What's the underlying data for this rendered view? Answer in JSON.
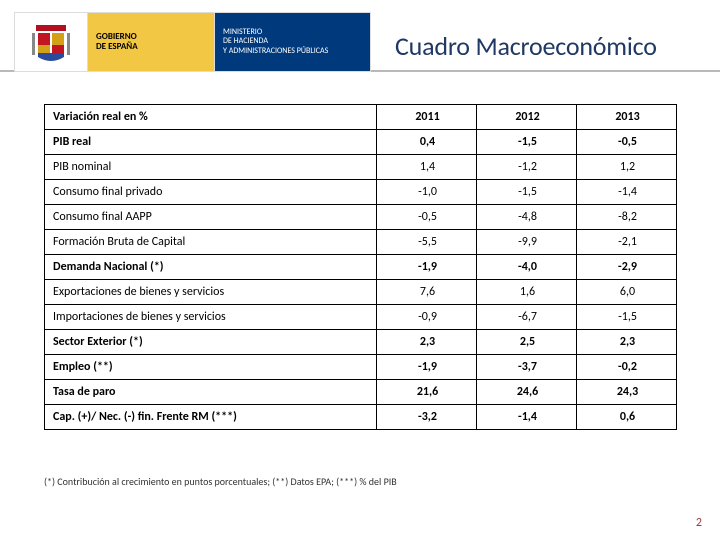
{
  "header": {
    "gov_line1": "GOBIERNO",
    "gov_line2": "DE ESPAÑA",
    "ministry_line1": "MINISTERIO",
    "ministry_line2": "DE HACIENDA",
    "ministry_line3": "Y ADMINISTRACIONES PÚBLICAS",
    "title": "Cuadro Macroeconómico"
  },
  "table": {
    "columns_label": "Variación real en %",
    "years": [
      "2011",
      "2012",
      "2013"
    ],
    "rows": [
      {
        "label": "PIB real",
        "values": [
          "0,4",
          "-1,5",
          "-0,5"
        ],
        "bold": true
      },
      {
        "label": "PIB nominal",
        "values": [
          "1,4",
          "-1,2",
          "1,2"
        ],
        "bold": false
      },
      {
        "label": "Consumo final privado",
        "values": [
          "-1,0",
          "-1,5",
          "-1,4"
        ],
        "bold": false
      },
      {
        "label": "Consumo final AAPP",
        "values": [
          "-0,5",
          "-4,8",
          "-8,2"
        ],
        "bold": false
      },
      {
        "label": "Formación Bruta de Capital",
        "values": [
          "-5,5",
          "-9,9",
          "-2,1"
        ],
        "bold": false
      },
      {
        "label": "Demanda Nacional (*)",
        "values": [
          "-1,9",
          "-4,0",
          "-2,9"
        ],
        "bold": true
      },
      {
        "label": "Exportaciones de bienes y servicios",
        "values": [
          "7,6",
          "1,6",
          "6,0"
        ],
        "bold": false
      },
      {
        "label": "Importaciones de bienes y servicios",
        "values": [
          "-0,9",
          "-6,7",
          "-1,5"
        ],
        "bold": false
      },
      {
        "label": "Sector Exterior (*)",
        "values": [
          "2,3",
          "2,5",
          "2,3"
        ],
        "bold": true
      },
      {
        "label": "Empleo (**)",
        "values": [
          "-1,9",
          "-3,7",
          "-0,2"
        ],
        "bold": true
      },
      {
        "label": "Tasa de paro",
        "values": [
          "21,6",
          "24,6",
          "24,3"
        ],
        "bold": true
      },
      {
        "label": "Cap. (+)/ Nec. (-) fin. Frente RM (***)",
        "values": [
          "-3,2",
          "-1,4",
          "0,6"
        ],
        "bold": true
      }
    ]
  },
  "footnote": "(*) Contribución al crecimiento en puntos porcentuales; (**) Datos EPA; (***) % del PIB",
  "page_number": "2",
  "colors": {
    "title": "#1f3864",
    "gov_bg": "#f2c744",
    "ministry_bg": "#003a7c",
    "border": "#000000",
    "pagenum": "#9a3a3a"
  }
}
